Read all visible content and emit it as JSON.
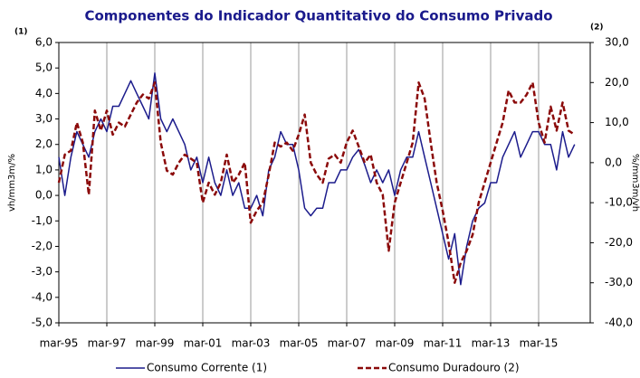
{
  "chart_data": {
    "type": "line",
    "title": "Componentes do Indicador Quantitativo do Consumo Privado",
    "left_note": "(1)",
    "right_note": "(2)",
    "y_label": "vh/mm3m/%",
    "y2_label": "%/mm3m/vh",
    "categories": [
      "mar-95",
      null,
      null,
      null,
      null,
      null,
      null,
      null,
      "mar-97",
      null,
      null,
      null,
      null,
      null,
      null,
      null,
      "mar-99",
      null,
      null,
      null,
      null,
      null,
      null,
      null,
      "mar-01",
      null,
      null,
      null,
      null,
      null,
      null,
      null,
      "mar-03",
      null,
      null,
      null,
      null,
      null,
      null,
      null,
      "mar-05",
      null,
      null,
      null,
      null,
      null,
      null,
      null,
      "mar-07",
      null,
      null,
      null,
      null,
      null,
      null,
      null,
      "mar-09",
      null,
      null,
      null,
      null,
      null,
      null,
      null,
      "mar-11",
      null,
      null,
      null,
      null,
      null,
      null,
      null,
      "mar-13",
      null,
      null,
      null,
      null,
      null,
      null,
      null,
      "mar-15",
      null,
      null,
      null,
      null,
      null,
      null
    ],
    "series": [
      {
        "name": "Consumo Corrente (1)",
        "color": "#1c1c8c",
        "axis": "y",
        "values": [
          1.5,
          0.0,
          1.5,
          2.5,
          2.0,
          1.5,
          2.5,
          3.0,
          2.5,
          3.5,
          3.5,
          4.0,
          4.5,
          4.0,
          3.5,
          3.0,
          4.8,
          3.0,
          2.5,
          3.0,
          2.5,
          2.0,
          1.0,
          1.5,
          0.5,
          1.5,
          0.5,
          0.0,
          1.0,
          0.0,
          0.5,
          -0.5,
          -0.5,
          0.0,
          -0.8,
          1.0,
          1.5,
          2.5,
          2.0,
          2.0,
          1.0,
          -0.5,
          -0.8,
          -0.5,
          -0.5,
          0.5,
          0.5,
          1.0,
          1.0,
          1.5,
          1.8,
          1.2,
          0.5,
          1.0,
          0.5,
          1.0,
          0.0,
          1.0,
          1.5,
          1.5,
          2.5,
          1.5,
          0.5,
          -0.5,
          -1.5,
          -2.5,
          -1.5,
          -3.5,
          -2.0,
          -1.0,
          -0.5,
          -0.3,
          0.5,
          0.5,
          1.5,
          2.0,
          2.5,
          1.5,
          2.0,
          2.5,
          2.5,
          2.0,
          2.0,
          1.0,
          2.5,
          1.5,
          2.0
        ]
      },
      {
        "name": "Consumo Duradouro (2)",
        "color": "#8b0a0a",
        "axis": "y2",
        "dashed": true,
        "values": [
          -5,
          2,
          3,
          10,
          5,
          -8,
          13,
          8,
          13,
          7,
          10,
          9,
          12,
          15,
          17,
          16,
          20,
          5,
          -2,
          -3,
          0,
          2,
          1,
          0,
          -10,
          -5,
          -8,
          -5,
          2,
          -5,
          -3,
          0,
          -15,
          -12,
          -10,
          -3,
          5,
          4,
          5,
          3,
          7,
          12,
          0,
          -3,
          -5,
          1,
          2,
          0,
          5,
          8,
          4,
          0,
          2,
          -5,
          -8,
          -22,
          -10,
          -5,
          0,
          5,
          20,
          16,
          5,
          -5,
          -12,
          -20,
          -30,
          -25,
          -22,
          -18,
          -10,
          -5,
          0,
          5,
          10,
          18,
          15,
          15,
          17,
          20,
          10,
          5,
          14,
          8,
          15,
          8,
          7
        ]
      }
    ],
    "ylim": [
      -5,
      6
    ],
    "yticks": [
      {
        "value": -5,
        "label": "-5,0"
      },
      {
        "value": -4,
        "label": "-4,0"
      },
      {
        "value": -3,
        "label": "-3,0"
      },
      {
        "value": -2,
        "label": "-2,0"
      },
      {
        "value": -1,
        "label": "-1,0"
      },
      {
        "value": 0,
        "label": "0,0"
      },
      {
        "value": 1,
        "label": "1,0"
      },
      {
        "value": 2,
        "label": "2,0"
      },
      {
        "value": 3,
        "label": "3,0"
      },
      {
        "value": 4,
        "label": "4,0"
      },
      {
        "value": 5,
        "label": "5,0"
      },
      {
        "value": 6,
        "label": "6,0"
      }
    ],
    "y2lim": [
      -40,
      30
    ],
    "y2ticks": [
      {
        "value": -40,
        "label": "-40,0"
      },
      {
        "value": -30,
        "label": "-30,0"
      },
      {
        "value": -20,
        "label": "-20,0"
      },
      {
        "value": -10,
        "label": "-10,0"
      },
      {
        "value": 0,
        "label": "0,0"
      },
      {
        "value": 10,
        "label": "10,0"
      },
      {
        "value": 20,
        "label": "20,0"
      },
      {
        "value": 30,
        "label": "30,0"
      }
    ],
    "grid": true
  }
}
